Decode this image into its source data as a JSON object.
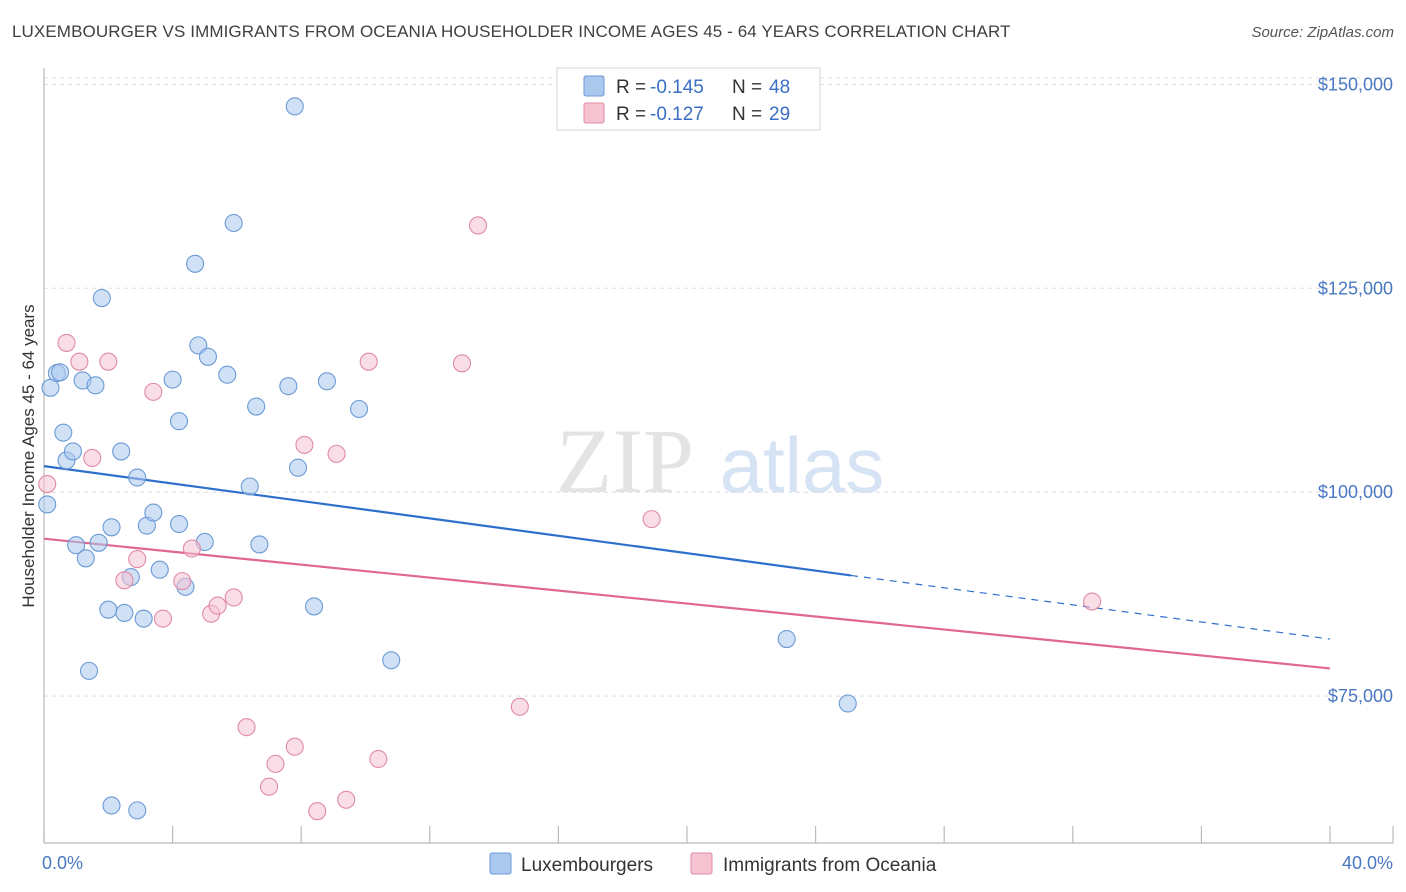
{
  "header": {
    "title": "LUXEMBOURGER VS IMMIGRANTS FROM OCEANIA HOUSEHOLDER INCOME AGES 45 - 64 YEARS CORRELATION CHART",
    "source": "Source: ZipAtlas.com"
  },
  "watermark": {
    "zip": "ZIP",
    "atlas": "atlas"
  },
  "colors": {
    "blue_fill": "#aac8ee",
    "blue_stroke": "#6b9ad6",
    "blue_line": "#2f6fcc",
    "pink_fill": "#f6c3d3",
    "pink_stroke": "#e08aa6",
    "pink_line": "#e0688f",
    "grid": "#dddddd",
    "tick_text": "#4a78c2"
  },
  "legend": {
    "rows": [
      {
        "r_label": "R = ",
        "r_value": "-0.145",
        "n_label": "N = ",
        "n_value": "48"
      },
      {
        "r_label": "R = ",
        "r_value": "-0.127",
        "n_label": "N = ",
        "n_value": "29"
      }
    ]
  },
  "chart_data": {
    "type": "scatter",
    "title": "LUXEMBOURGER VS IMMIGRANTS FROM OCEANIA HOUSEHOLDER INCOME AGES 45 - 64 YEARS CORRELATION CHART",
    "xlabel": "",
    "ylabel": "Householder Income Ages 45 - 64 years",
    "xlim": [
      0,
      40
    ],
    "ylim": [
      57000,
      152000
    ],
    "x_tick_labels": [
      "0.0%",
      "40.0%"
    ],
    "y_ticks": [
      {
        "value": 75000,
        "label": "$75,000"
      },
      {
        "value": 100000,
        "label": "$100,000"
      },
      {
        "value": 125000,
        "label": "$125,000"
      },
      {
        "value": 150000,
        "label": "$150,000"
      }
    ],
    "grid": "horizontal dashed",
    "legend_placement": "top-center and bottom",
    "series": [
      {
        "name": "Luxembourgers",
        "color": "blue",
        "r": -0.145,
        "n": 48,
        "trend": {
          "x0": 0,
          "y0": 103200,
          "x1": 25.1,
          "y1": 89800,
          "dash_x1": 40,
          "dash_y1": 82000
        },
        "points": [
          [
            0.1,
            98500
          ],
          [
            0.2,
            112800
          ],
          [
            0.4,
            114600
          ],
          [
            0.5,
            114700
          ],
          [
            0.6,
            107300
          ],
          [
            0.7,
            103900
          ],
          [
            0.9,
            105000
          ],
          [
            1.0,
            93500
          ],
          [
            1.2,
            113700
          ],
          [
            1.3,
            91900
          ],
          [
            1.4,
            78100
          ],
          [
            1.6,
            113100
          ],
          [
            1.7,
            93800
          ],
          [
            1.8,
            123800
          ],
          [
            2.0,
            85600
          ],
          [
            2.1,
            95700
          ],
          [
            2.4,
            105000
          ],
          [
            2.5,
            85200
          ],
          [
            2.7,
            89600
          ],
          [
            2.9,
            101800
          ],
          [
            3.1,
            84500
          ],
          [
            3.2,
            95900
          ],
          [
            3.4,
            97500
          ],
          [
            3.6,
            90500
          ],
          [
            4.0,
            113800
          ],
          [
            4.2,
            108700
          ],
          [
            4.2,
            96100
          ],
          [
            4.4,
            88400
          ],
          [
            4.7,
            128000
          ],
          [
            4.8,
            118000
          ],
          [
            5.0,
            93900
          ],
          [
            5.1,
            116600
          ],
          [
            5.7,
            114400
          ],
          [
            5.9,
            133000
          ],
          [
            6.4,
            100700
          ],
          [
            6.6,
            110500
          ],
          [
            6.7,
            93600
          ],
          [
            7.6,
            113000
          ],
          [
            7.8,
            147300
          ],
          [
            7.9,
            103000
          ],
          [
            8.4,
            86000
          ],
          [
            8.8,
            113600
          ],
          [
            9.8,
            110200
          ],
          [
            10.8,
            79400
          ],
          [
            2.1,
            61600
          ],
          [
            2.9,
            61000
          ],
          [
            23.1,
            82000
          ],
          [
            25.0,
            74100
          ]
        ]
      },
      {
        "name": "Immigrants from Oceania",
        "color": "pink",
        "r": -0.127,
        "n": 29,
        "trend": {
          "x0": 0,
          "y0": 94300,
          "x1": 40,
          "y1": 78400
        },
        "points": [
          [
            0.1,
            101000
          ],
          [
            0.7,
            118300
          ],
          [
            1.1,
            116000
          ],
          [
            1.5,
            104200
          ],
          [
            2.0,
            116000
          ],
          [
            2.5,
            89200
          ],
          [
            2.9,
            91800
          ],
          [
            3.4,
            112300
          ],
          [
            3.7,
            84500
          ],
          [
            4.3,
            89100
          ],
          [
            4.6,
            93100
          ],
          [
            5.2,
            85100
          ],
          [
            5.4,
            86100
          ],
          [
            5.9,
            87100
          ],
          [
            6.3,
            71200
          ],
          [
            7.0,
            63900
          ],
          [
            7.2,
            66700
          ],
          [
            7.8,
            68800
          ],
          [
            8.1,
            105800
          ],
          [
            8.5,
            60900
          ],
          [
            9.1,
            104700
          ],
          [
            9.4,
            62300
          ],
          [
            10.1,
            116000
          ],
          [
            10.4,
            67300
          ],
          [
            13.0,
            115800
          ],
          [
            13.5,
            132700
          ],
          [
            14.8,
            73700
          ],
          [
            18.9,
            96700
          ],
          [
            32.6,
            86600
          ]
        ]
      }
    ]
  }
}
